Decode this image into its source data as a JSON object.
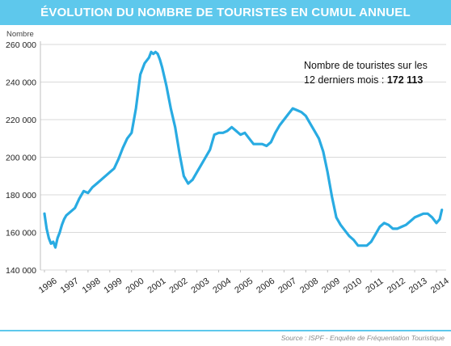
{
  "header": {
    "title": "ÉVOLUTION DU NOMBRE DE TOURISTES EN CUMUL ANNUEL"
  },
  "annotation": {
    "line1": "Nombre de touristes sur les",
    "line2_prefix": "12 derniers mois : ",
    "line2_value": "172 113"
  },
  "footer": {
    "source": "Source : ISPF - Enquête de Fréquentation Touristique"
  },
  "colors": {
    "accent": "#5ec8ec",
    "line": "#29abe2",
    "grid": "#d9d9d9",
    "text": "#222222"
  },
  "chart_data": {
    "type": "line",
    "title": "ÉVOLUTION DU NOMBRE DE TOURISTES EN CUMUL ANNUEL",
    "xlabel": "",
    "ylabel": "Nombre",
    "ylim": [
      140000,
      260000
    ],
    "xlim": [
      1996,
      2014.25
    ],
    "grid": true,
    "yticks": [
      140000,
      160000,
      180000,
      200000,
      220000,
      240000,
      260000
    ],
    "ytick_labels": [
      "140 000",
      "160 000",
      "180 000",
      "200 000",
      "220 000",
      "240 000",
      "260 000"
    ],
    "xticks": [
      1996,
      1997,
      1998,
      1999,
      2000,
      2001,
      2002,
      2003,
      2004,
      2005,
      2006,
      2007,
      2008,
      2009,
      2010,
      2011,
      2012,
      2013,
      2014
    ],
    "xtick_labels": [
      "1996",
      "1997",
      "1998",
      "1999",
      "2000",
      "2001",
      "2002",
      "2003",
      "2004",
      "2005",
      "2006",
      "2007",
      "2008",
      "2009",
      "2010",
      "2011",
      "2012",
      "2013",
      "2014"
    ],
    "series": [
      {
        "x": [
          1996.0,
          1996.1,
          1996.2,
          1996.3,
          1996.4,
          1996.5,
          1996.6,
          1996.7,
          1996.8,
          1996.9,
          1997.0,
          1997.2,
          1997.4,
          1997.6,
          1997.8,
          1998.0,
          1998.2,
          1998.4,
          1998.6,
          1998.8,
          1999.0,
          1999.2,
          1999.4,
          1999.6,
          1999.8,
          2000.0,
          2000.2,
          2000.4,
          2000.6,
          2000.8,
          2000.9,
          2001.0,
          2001.1,
          2001.2,
          2001.3,
          2001.4,
          2001.6,
          2001.8,
          2002.0,
          2002.2,
          2002.4,
          2002.6,
          2002.7,
          2002.8,
          2003.0,
          2003.2,
          2003.4,
          2003.6,
          2003.8,
          2004.0,
          2004.2,
          2004.4,
          2004.6,
          2004.8,
          2005.0,
          2005.2,
          2005.4,
          2005.6,
          2005.8,
          2006.0,
          2006.2,
          2006.4,
          2006.6,
          2006.8,
          2007.0,
          2007.2,
          2007.4,
          2007.6,
          2007.8,
          2008.0,
          2008.2,
          2008.4,
          2008.6,
          2008.8,
          2009.0,
          2009.2,
          2009.4,
          2009.6,
          2009.8,
          2010.0,
          2010.2,
          2010.4,
          2010.6,
          2010.8,
          2011.0,
          2011.2,
          2011.4,
          2011.6,
          2011.8,
          2012.0,
          2012.2,
          2012.4,
          2012.6,
          2012.8,
          2013.0,
          2013.2,
          2013.4,
          2013.6,
          2013.8,
          2014.0,
          2014.15,
          2014.25
        ],
        "values": [
          170000,
          162000,
          157000,
          154000,
          155000,
          152000,
          157000,
          160000,
          164000,
          167000,
          169000,
          171000,
          173000,
          178000,
          182000,
          181000,
          184000,
          186000,
          188000,
          190000,
          192000,
          194000,
          199000,
          205000,
          210000,
          213000,
          226000,
          244000,
          250000,
          253000,
          256000,
          255000,
          256000,
          255000,
          252000,
          248000,
          238000,
          226000,
          216000,
          202000,
          190000,
          186000,
          187000,
          188000,
          192000,
          196000,
          200000,
          204000,
          212000,
          213000,
          213000,
          214000,
          216000,
          214000,
          212000,
          213000,
          210000,
          207000,
          207000,
          207000,
          206000,
          208000,
          213000,
          217000,
          220000,
          223000,
          226000,
          225000,
          224000,
          222000,
          218000,
          214000,
          210000,
          203000,
          192000,
          179000,
          168000,
          164000,
          161000,
          158000,
          156000,
          153000,
          153000,
          153000,
          155000,
          159000,
          163000,
          165000,
          164000,
          162000,
          162000,
          163000,
          164000,
          166000,
          168000,
          169000,
          170000,
          170000,
          168000,
          165000,
          167000,
          172000
        ]
      }
    ]
  }
}
